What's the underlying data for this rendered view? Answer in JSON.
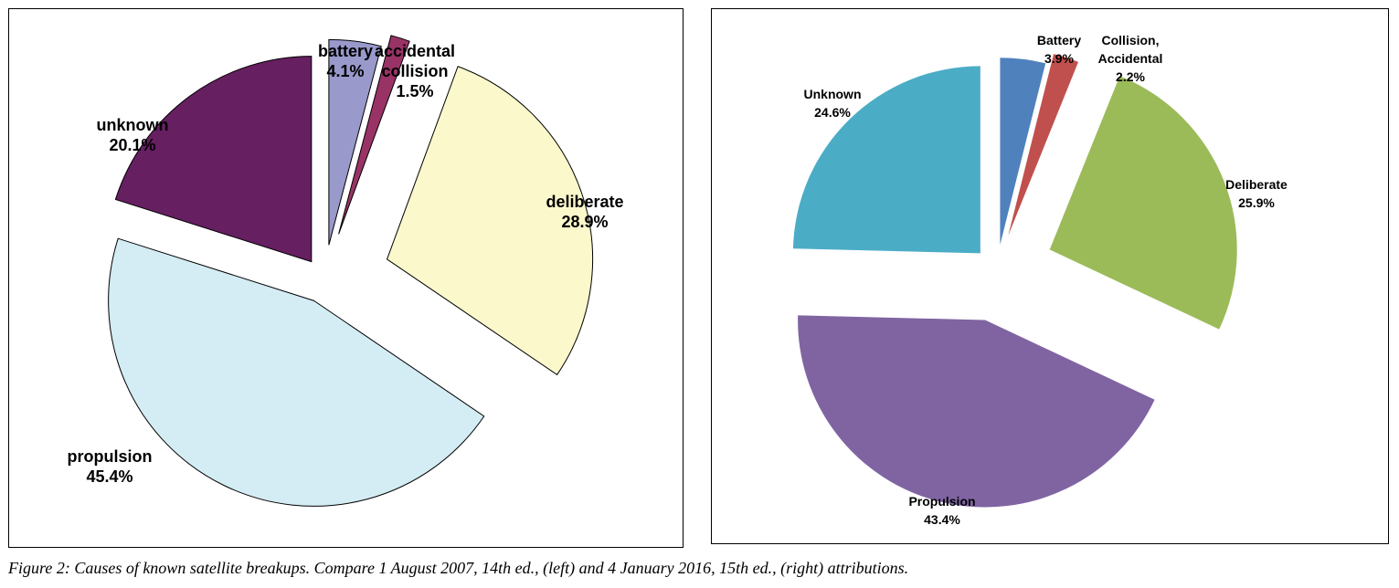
{
  "chart_data": [
    {
      "type": "pie",
      "exploded": true,
      "slices": [
        {
          "label": "battery",
          "value": 4.1,
          "value_text": "4.1%",
          "color": "#9999cc"
        },
        {
          "label": "accidental collision",
          "label_lines": [
            "accidental",
            "collision"
          ],
          "value": 1.5,
          "value_text": "1.5%",
          "color": "#993366"
        },
        {
          "label": "deliberate",
          "value": 28.9,
          "value_text": "28.9%",
          "color": "#fbf8cc"
        },
        {
          "label": "propulsion",
          "value": 45.4,
          "value_text": "45.4%",
          "color": "#d4ecf4"
        },
        {
          "label": "unknown",
          "value": 20.1,
          "value_text": "20.1%",
          "color": "#661f61"
        }
      ],
      "slice_outline": "#000000"
    },
    {
      "type": "pie",
      "exploded": true,
      "slices": [
        {
          "label": "Battery",
          "value": 3.9,
          "value_text": "3.9%",
          "color": "#4f81bd"
        },
        {
          "label": "Collision, Accidental",
          "label_lines": [
            "Collision,",
            "Accidental"
          ],
          "value": 2.2,
          "value_text": "2.2%",
          "color": "#c0504d"
        },
        {
          "label": "Deliberate",
          "value": 25.9,
          "value_text": "25.9%",
          "color": "#9bbb59"
        },
        {
          "label": "Propulsion",
          "value": 43.4,
          "value_text": "43.4%",
          "color": "#8064a2"
        },
        {
          "label": "Unknown",
          "value": 24.6,
          "value_text": "24.6%",
          "color": "#4bacc6"
        }
      ],
      "slice_outline": "none"
    }
  ],
  "caption": "Figure 2:  Causes of known satellite breakups.  Compare 1 August 2007, 14th ed., (left) and 4 January 2016, 15th ed., (right) attributions."
}
